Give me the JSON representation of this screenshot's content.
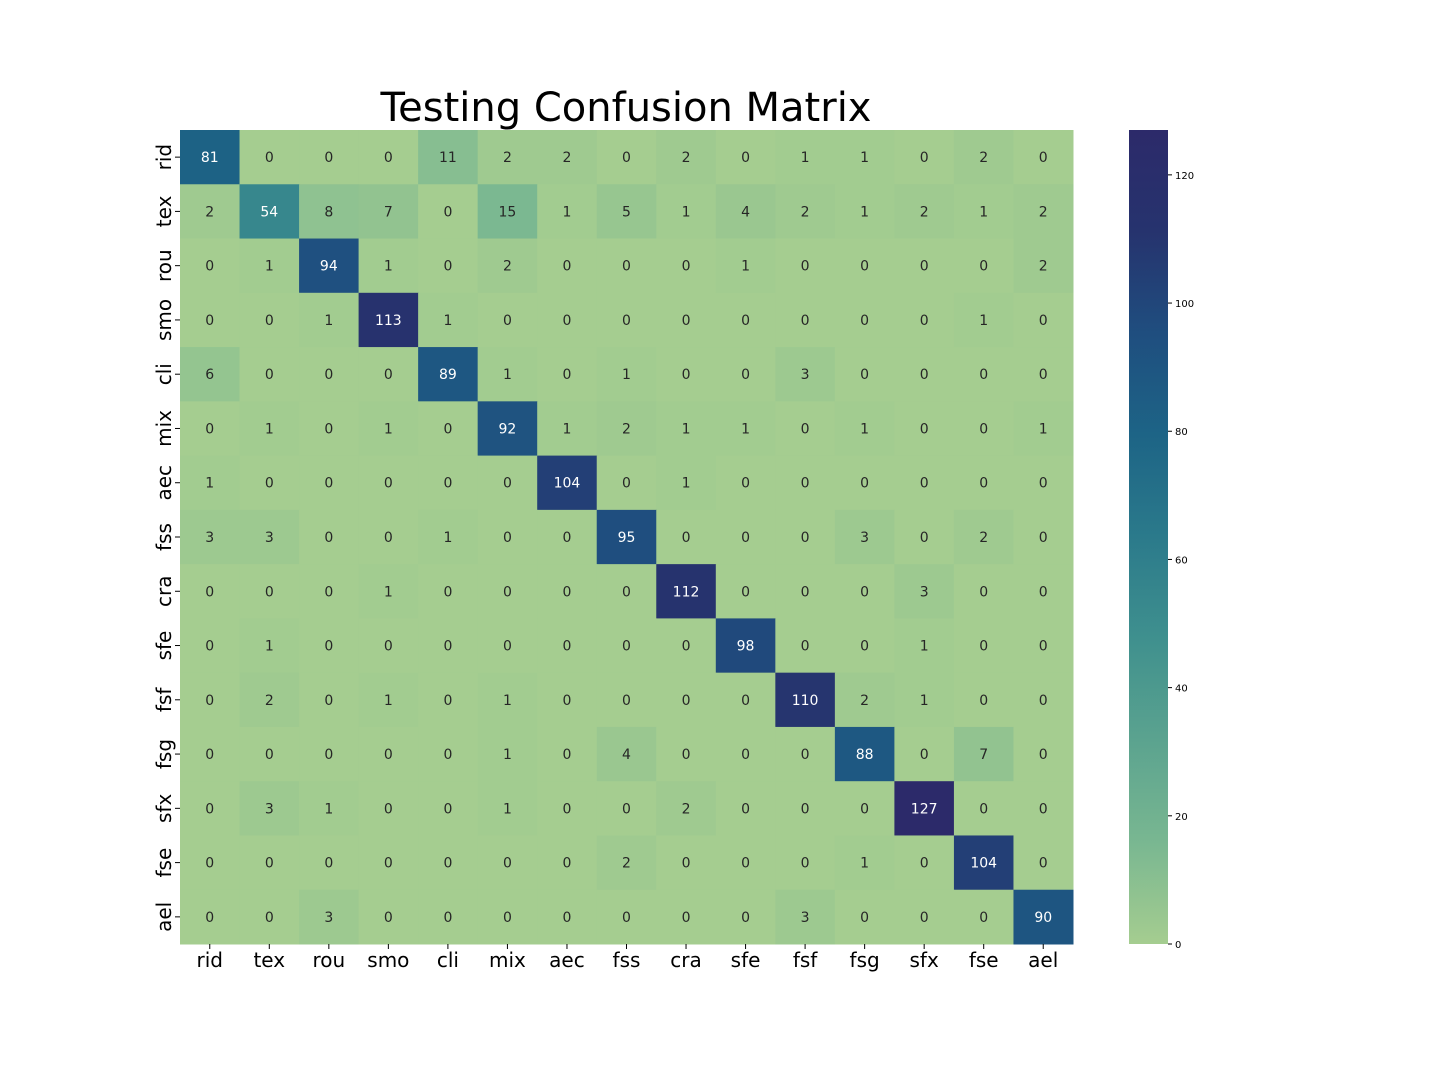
{
  "chart_data": {
    "type": "heatmap",
    "title": "Testing Confusion Matrix",
    "xlabel": "",
    "ylabel": "",
    "x_labels": [
      "rid",
      "tex",
      "rou",
      "smo",
      "cli",
      "mix",
      "aec",
      "fss",
      "cra",
      "sfe",
      "fsf",
      "fsg",
      "sfx",
      "fse",
      "ael"
    ],
    "y_labels": [
      "rid",
      "tex",
      "rou",
      "smo",
      "cli",
      "mix",
      "aec",
      "fss",
      "cra",
      "sfe",
      "fsf",
      "fsg",
      "sfx",
      "fse",
      "ael"
    ],
    "matrix": [
      [
        81,
        0,
        0,
        0,
        11,
        2,
        2,
        0,
        2,
        0,
        1,
        1,
        0,
        2,
        0
      ],
      [
        2,
        54,
        8,
        7,
        0,
        15,
        1,
        5,
        1,
        4,
        2,
        1,
        2,
        1,
        2
      ],
      [
        0,
        1,
        94,
        1,
        0,
        2,
        0,
        0,
        0,
        1,
        0,
        0,
        0,
        0,
        2
      ],
      [
        0,
        0,
        1,
        113,
        1,
        0,
        0,
        0,
        0,
        0,
        0,
        0,
        0,
        1,
        0
      ],
      [
        6,
        0,
        0,
        0,
        89,
        1,
        0,
        1,
        0,
        0,
        3,
        0,
        0,
        0,
        0
      ],
      [
        0,
        1,
        0,
        1,
        0,
        92,
        1,
        2,
        1,
        1,
        0,
        1,
        0,
        0,
        1
      ],
      [
        1,
        0,
        0,
        0,
        0,
        0,
        104,
        0,
        1,
        0,
        0,
        0,
        0,
        0,
        0
      ],
      [
        3,
        3,
        0,
        0,
        1,
        0,
        0,
        95,
        0,
        0,
        0,
        3,
        0,
        2,
        0
      ],
      [
        0,
        0,
        0,
        1,
        0,
        0,
        0,
        0,
        112,
        0,
        0,
        0,
        3,
        0,
        0
      ],
      [
        0,
        1,
        0,
        0,
        0,
        0,
        0,
        0,
        0,
        98,
        0,
        0,
        1,
        0,
        0
      ],
      [
        0,
        2,
        0,
        1,
        0,
        1,
        0,
        0,
        0,
        0,
        110,
        2,
        1,
        0,
        0
      ],
      [
        0,
        0,
        0,
        0,
        0,
        1,
        0,
        4,
        0,
        0,
        0,
        88,
        0,
        7,
        0
      ],
      [
        0,
        3,
        1,
        0,
        0,
        1,
        0,
        0,
        2,
        0,
        0,
        0,
        127,
        0,
        0
      ],
      [
        0,
        0,
        0,
        0,
        0,
        0,
        0,
        2,
        0,
        0,
        0,
        1,
        0,
        104,
        0
      ],
      [
        0,
        0,
        3,
        0,
        0,
        0,
        0,
        0,
        0,
        0,
        3,
        0,
        0,
        0,
        90
      ]
    ],
    "colorbar": {
      "min": 0,
      "max": 127,
      "ticks": [
        "0",
        "20",
        "40",
        "60",
        "80",
        "100",
        "120"
      ],
      "colormap": "crest",
      "stops": [
        "#a5cd90",
        "#79b791",
        "#5ba38f",
        "#3f908e",
        "#2b7a8b",
        "#1d6486",
        "#1f4e7f",
        "#26336e",
        "#2c2a6a"
      ]
    }
  }
}
